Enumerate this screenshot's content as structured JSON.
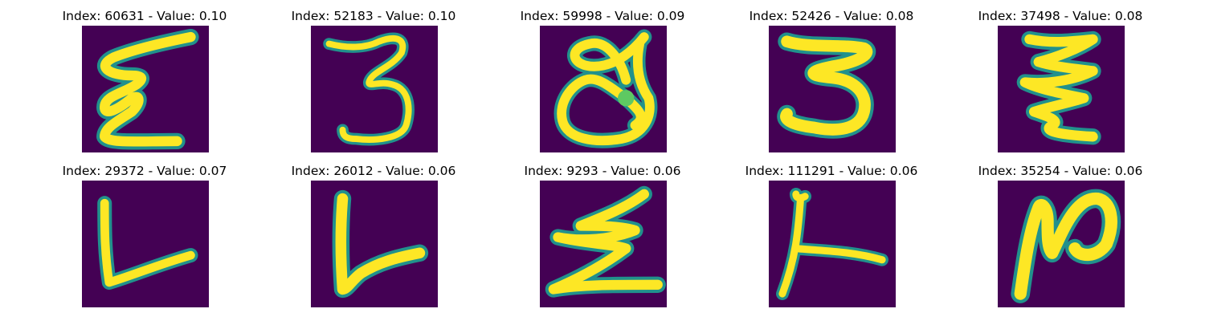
{
  "colors": {
    "background": "#440154",
    "stroke_mid": "#21918c",
    "stroke_edge": "#5ec962",
    "stroke_core": "#fde725"
  },
  "panels": [
    {
      "index": 60631,
      "value": "0.10",
      "title": "Index: 60631 - Value: 0.10",
      "glyph": "handwritten-epsilon-like-3"
    },
    {
      "index": 52183,
      "value": "0.10",
      "title": "Index: 52183 - Value: 0.10",
      "glyph": "handwritten-3"
    },
    {
      "index": 59998,
      "value": "0.09",
      "title": "Index: 59998 - Value: 0.09",
      "glyph": "handwritten-a-loop"
    },
    {
      "index": 52426,
      "value": "0.08",
      "title": "Index: 52426 - Value: 0.08",
      "glyph": "handwritten-3-bold"
    },
    {
      "index": 37498,
      "value": "0.08",
      "title": "Index: 37498 - Value: 0.08",
      "glyph": "handwritten-zigzag"
    },
    {
      "index": 29372,
      "value": "0.07",
      "title": "Index: 29372 - Value: 0.07",
      "glyph": "handwritten-L"
    },
    {
      "index": 26012,
      "value": "0.06",
      "title": "Index: 26012 - Value: 0.06",
      "glyph": "handwritten-L-bold"
    },
    {
      "index": 9293,
      "value": "0.06",
      "title": "Index: 9293 - Value: 0.06",
      "glyph": "handwritten-Z"
    },
    {
      "index": 111291,
      "value": "0.06",
      "title": "Index: 111291 - Value: 0.06",
      "glyph": "handwritten-T-sideways"
    },
    {
      "index": 35254,
      "value": "0.06",
      "title": "Index: 35254 - Value: 0.06",
      "glyph": "handwritten-N-loop"
    }
  ]
}
